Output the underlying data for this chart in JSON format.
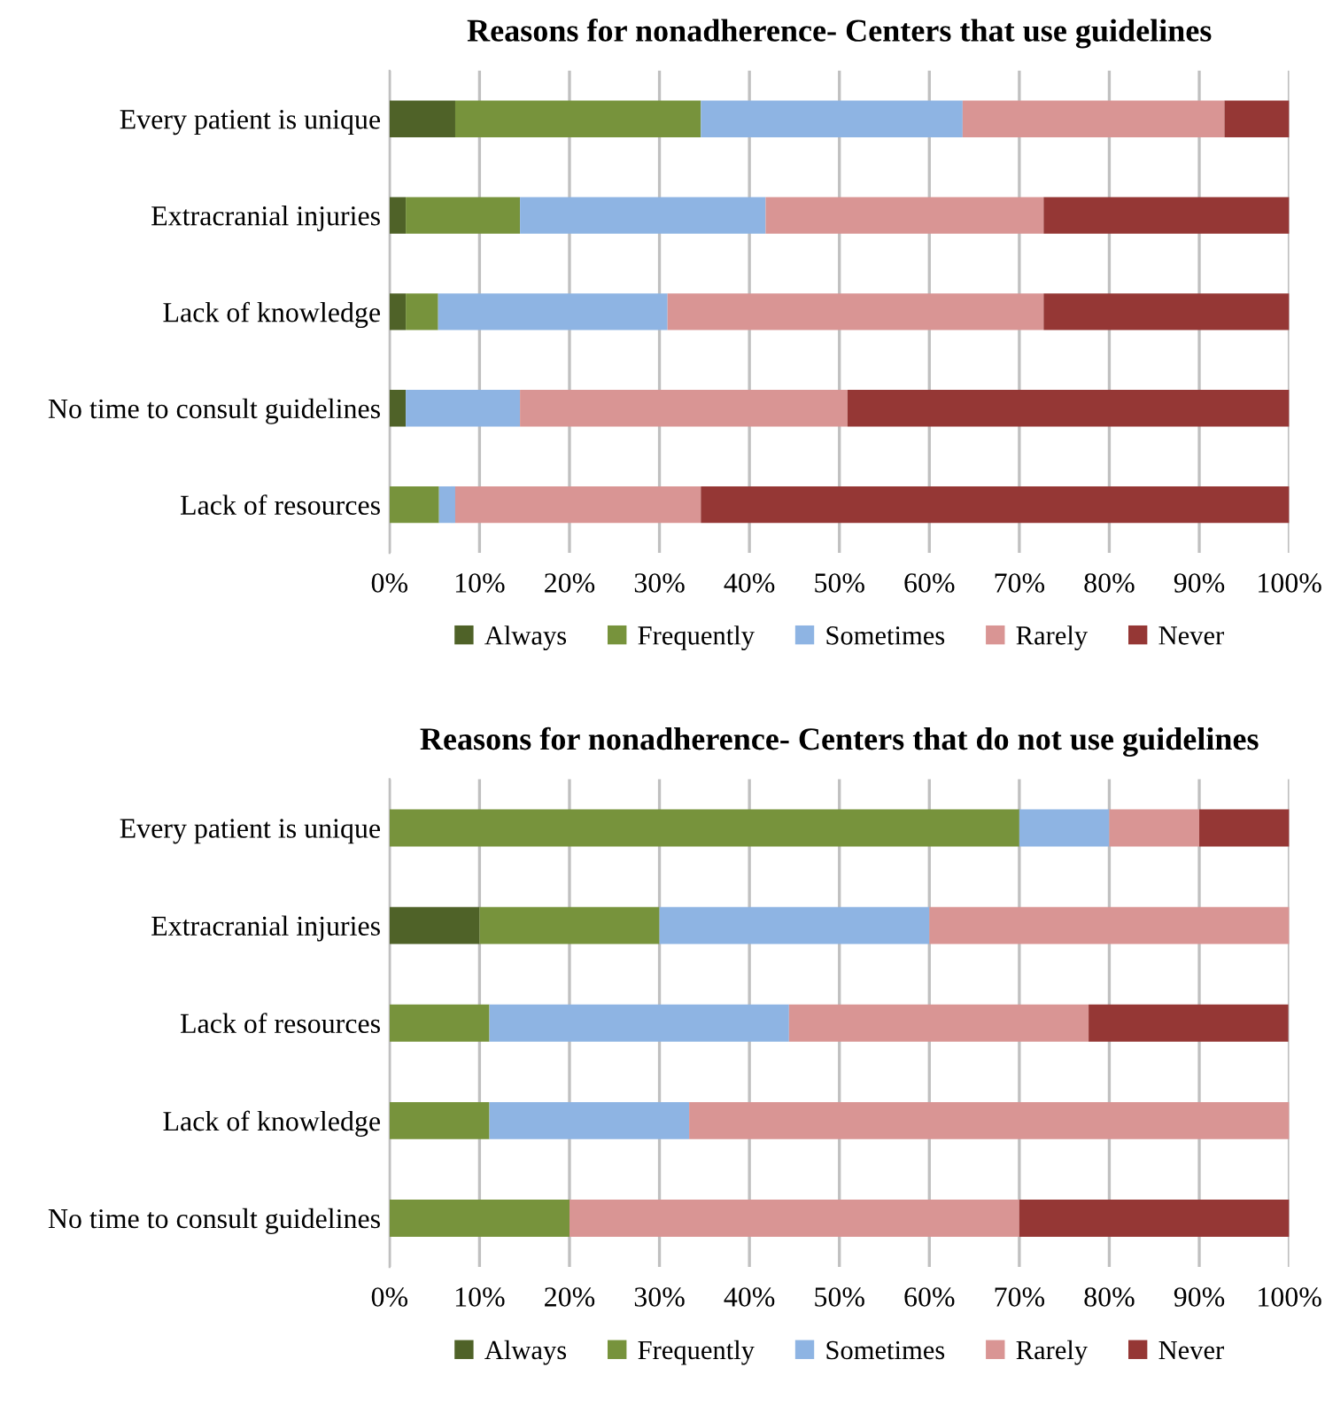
{
  "chart_data": [
    {
      "type": "bar",
      "orientation": "horizontal",
      "stacked": true,
      "title": "Reasons for nonadherence- Centers that use guidelines",
      "categories": [
        "Every patient is unique",
        "Extracranial injuries",
        "Lack of knowledge",
        "No time to consult guidelines",
        "Lack of resources"
      ],
      "series": [
        {
          "name": "Always",
          "color": "#4f6228",
          "values": [
            7.3,
            1.8,
            1.8,
            1.8,
            0
          ]
        },
        {
          "name": "Frequently",
          "color": "#77933c",
          "values": [
            27.3,
            12.7,
            3.6,
            0,
            5.5
          ]
        },
        {
          "name": "Sometimes",
          "color": "#8eb4e3",
          "values": [
            29.1,
            27.3,
            25.5,
            12.7,
            1.8
          ]
        },
        {
          "name": "Rarely",
          "color": "#d99594",
          "values": [
            29.1,
            30.9,
            41.8,
            36.4,
            27.3
          ]
        },
        {
          "name": "Never",
          "color": "#953735",
          "values": [
            7.2,
            27.3,
            27.3,
            49.1,
            65.4
          ]
        }
      ],
      "xlim": [
        0,
        100
      ],
      "xticks": [
        {
          "value": 0,
          "label": "0%"
        },
        {
          "value": 10,
          "label": "10%"
        },
        {
          "value": 20,
          "label": "20%"
        },
        {
          "value": 30,
          "label": "30%"
        },
        {
          "value": 40,
          "label": "40%"
        },
        {
          "value": 50,
          "label": "50%"
        },
        {
          "value": 60,
          "label": "60%"
        },
        {
          "value": 70,
          "label": "70%"
        },
        {
          "value": 80,
          "label": "80%"
        },
        {
          "value": 90,
          "label": "90%"
        },
        {
          "value": 100,
          "label": "100%"
        }
      ],
      "grid": "x",
      "legend": "bottom"
    },
    {
      "type": "bar",
      "orientation": "horizontal",
      "stacked": true,
      "title": "Reasons for nonadherence- Centers that do not use guidelines",
      "categories": [
        "Every patient is unique",
        "Extracranial injuries",
        "Lack of resources",
        "Lack of knowledge",
        "No time to consult guidelines"
      ],
      "series": [
        {
          "name": "Always",
          "color": "#4f6228",
          "values": [
            0,
            10,
            0,
            0,
            0
          ]
        },
        {
          "name": "Frequently",
          "color": "#77933c",
          "values": [
            70,
            20,
            11.1,
            11.1,
            20
          ]
        },
        {
          "name": "Sometimes",
          "color": "#8eb4e3",
          "values": [
            10,
            30,
            33.3,
            22.2,
            0
          ]
        },
        {
          "name": "Rarely",
          "color": "#d99594",
          "values": [
            10,
            40,
            33.3,
            66.7,
            50
          ]
        },
        {
          "name": "Never",
          "color": "#953735",
          "values": [
            10,
            0,
            22.2,
            0,
            30
          ]
        }
      ],
      "xlim": [
        0,
        100
      ],
      "xticks": [
        {
          "value": 0,
          "label": "0%"
        },
        {
          "value": 10,
          "label": "10%"
        },
        {
          "value": 20,
          "label": "20%"
        },
        {
          "value": 30,
          "label": "30%"
        },
        {
          "value": 40,
          "label": "40%"
        },
        {
          "value": 50,
          "label": "50%"
        },
        {
          "value": 60,
          "label": "60%"
        },
        {
          "value": 70,
          "label": "70%"
        },
        {
          "value": 80,
          "label": "80%"
        },
        {
          "value": 90,
          "label": "90%"
        },
        {
          "value": 100,
          "label": "100%"
        }
      ],
      "grid": "x",
      "legend": "bottom"
    }
  ]
}
